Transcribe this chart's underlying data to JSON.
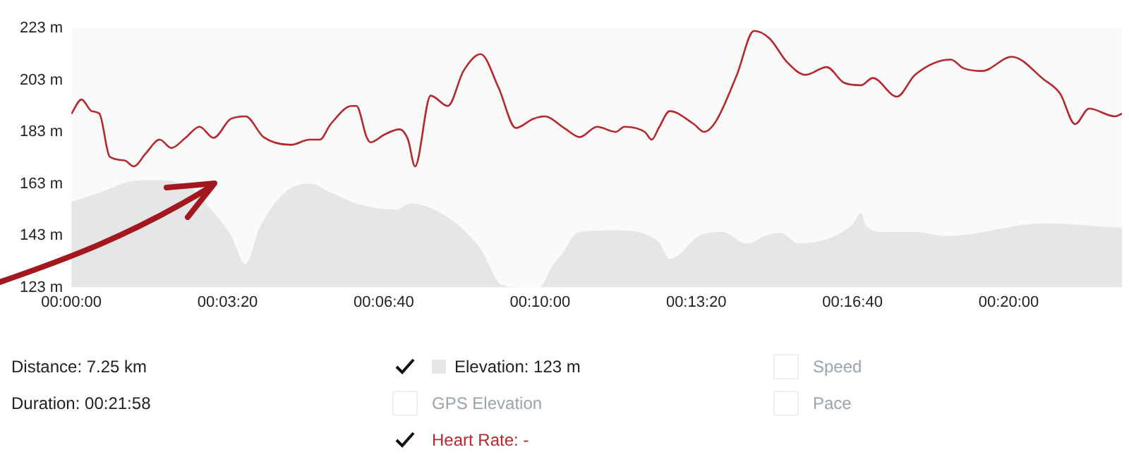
{
  "chart_data": {
    "type": "line",
    "xlim": [
      0,
      1345
    ],
    "ylim": [
      123,
      223
    ],
    "xticks": [
      {
        "value": 0,
        "label": "00:00:00"
      },
      {
        "value": 200,
        "label": "00:03:20"
      },
      {
        "value": 400,
        "label": "00:06:40"
      },
      {
        "value": 600,
        "label": "00:10:00"
      },
      {
        "value": 800,
        "label": "00:13:20"
      },
      {
        "value": 1000,
        "label": "00:16:40"
      },
      {
        "value": 1200,
        "label": "00:20:00"
      }
    ],
    "yticks": [
      {
        "value": 123,
        "label": "123 m"
      },
      {
        "value": 143,
        "label": "143 m"
      },
      {
        "value": 163,
        "label": "163 m"
      },
      {
        "value": 183,
        "label": "183 m"
      },
      {
        "value": 203,
        "label": "203 m"
      },
      {
        "value": 223,
        "label": "223 m"
      }
    ],
    "grid": false,
    "legend": "bottom",
    "marker": "none",
    "series": [
      {
        "name": "Elevation: 123 m",
        "type": "area",
        "color": "#e6e6e6",
        "x": [
          0,
          40,
          77,
          104,
          150,
          177,
          204,
          223,
          241,
          274,
          307,
          329,
          369,
          416,
          434,
          482,
          524,
          551,
          584,
          599,
          617,
          626,
          650,
          697,
          752,
          766,
          806,
          834,
          864,
          874,
          887,
          909,
          931,
          999,
          1011,
          1017,
          1040,
          1080,
          1120,
          1246,
          1345
        ],
        "values": [
          156,
          160,
          164,
          164.4,
          162,
          153.8,
          143.3,
          132,
          146,
          159.8,
          163,
          160,
          155,
          153,
          155.4,
          150,
          137.8,
          124,
          123,
          123,
          132,
          135,
          144.4,
          145,
          140.6,
          134,
          143.3,
          144.4,
          140,
          140.6,
          142.8,
          144,
          140,
          147,
          151.6,
          147,
          144.4,
          144.4,
          142.8,
          147.7,
          146
        ]
      },
      {
        "name": "Heart Rate: -",
        "type": "line",
        "color": "#b5282e",
        "x": [
          0,
          13,
          26,
          36,
          49,
          68,
          80,
          95,
          113,
          128,
          146,
          164,
          182,
          204,
          223,
          246,
          281,
          305,
          318,
          332,
          359,
          365,
          378,
          383,
          401,
          420,
          431,
          440,
          460,
          482,
          502,
          524,
          547,
          569,
          591,
          606,
          631,
          651,
          673,
          697,
          708,
          734,
          743,
          752,
          766,
          797,
          810,
          825,
          852,
          874,
          894,
          916,
          940,
          967,
          989,
          1011,
          1026,
          1057,
          1080,
          1126,
          1142,
          1166,
          1204,
          1245,
          1266,
          1285,
          1303,
          1336,
          1345
        ],
        "values": [
          190,
          195.5,
          191,
          190,
          173.5,
          172,
          169.7,
          174.6,
          180,
          176.8,
          180.7,
          185,
          180.7,
          188,
          189,
          181,
          178,
          180,
          180,
          186,
          193,
          193,
          181,
          179,
          182,
          184,
          180,
          169.7,
          197,
          193,
          206.5,
          213,
          200,
          184.5,
          188,
          189,
          184.5,
          181,
          185,
          183,
          185,
          183,
          180,
          184.5,
          191,
          186,
          183,
          187,
          205,
          222,
          219,
          210,
          205,
          208,
          202,
          201,
          203.8,
          196.6,
          205,
          210.9,
          207.6,
          206.5,
          212,
          203.2,
          197.7,
          186,
          192,
          189,
          190
        ]
      }
    ],
    "annotations": [
      "Distance: 7.25 km",
      "Duration: 00:21:58",
      "GPS Elevation",
      "Speed",
      "Pace"
    ]
  }
}
